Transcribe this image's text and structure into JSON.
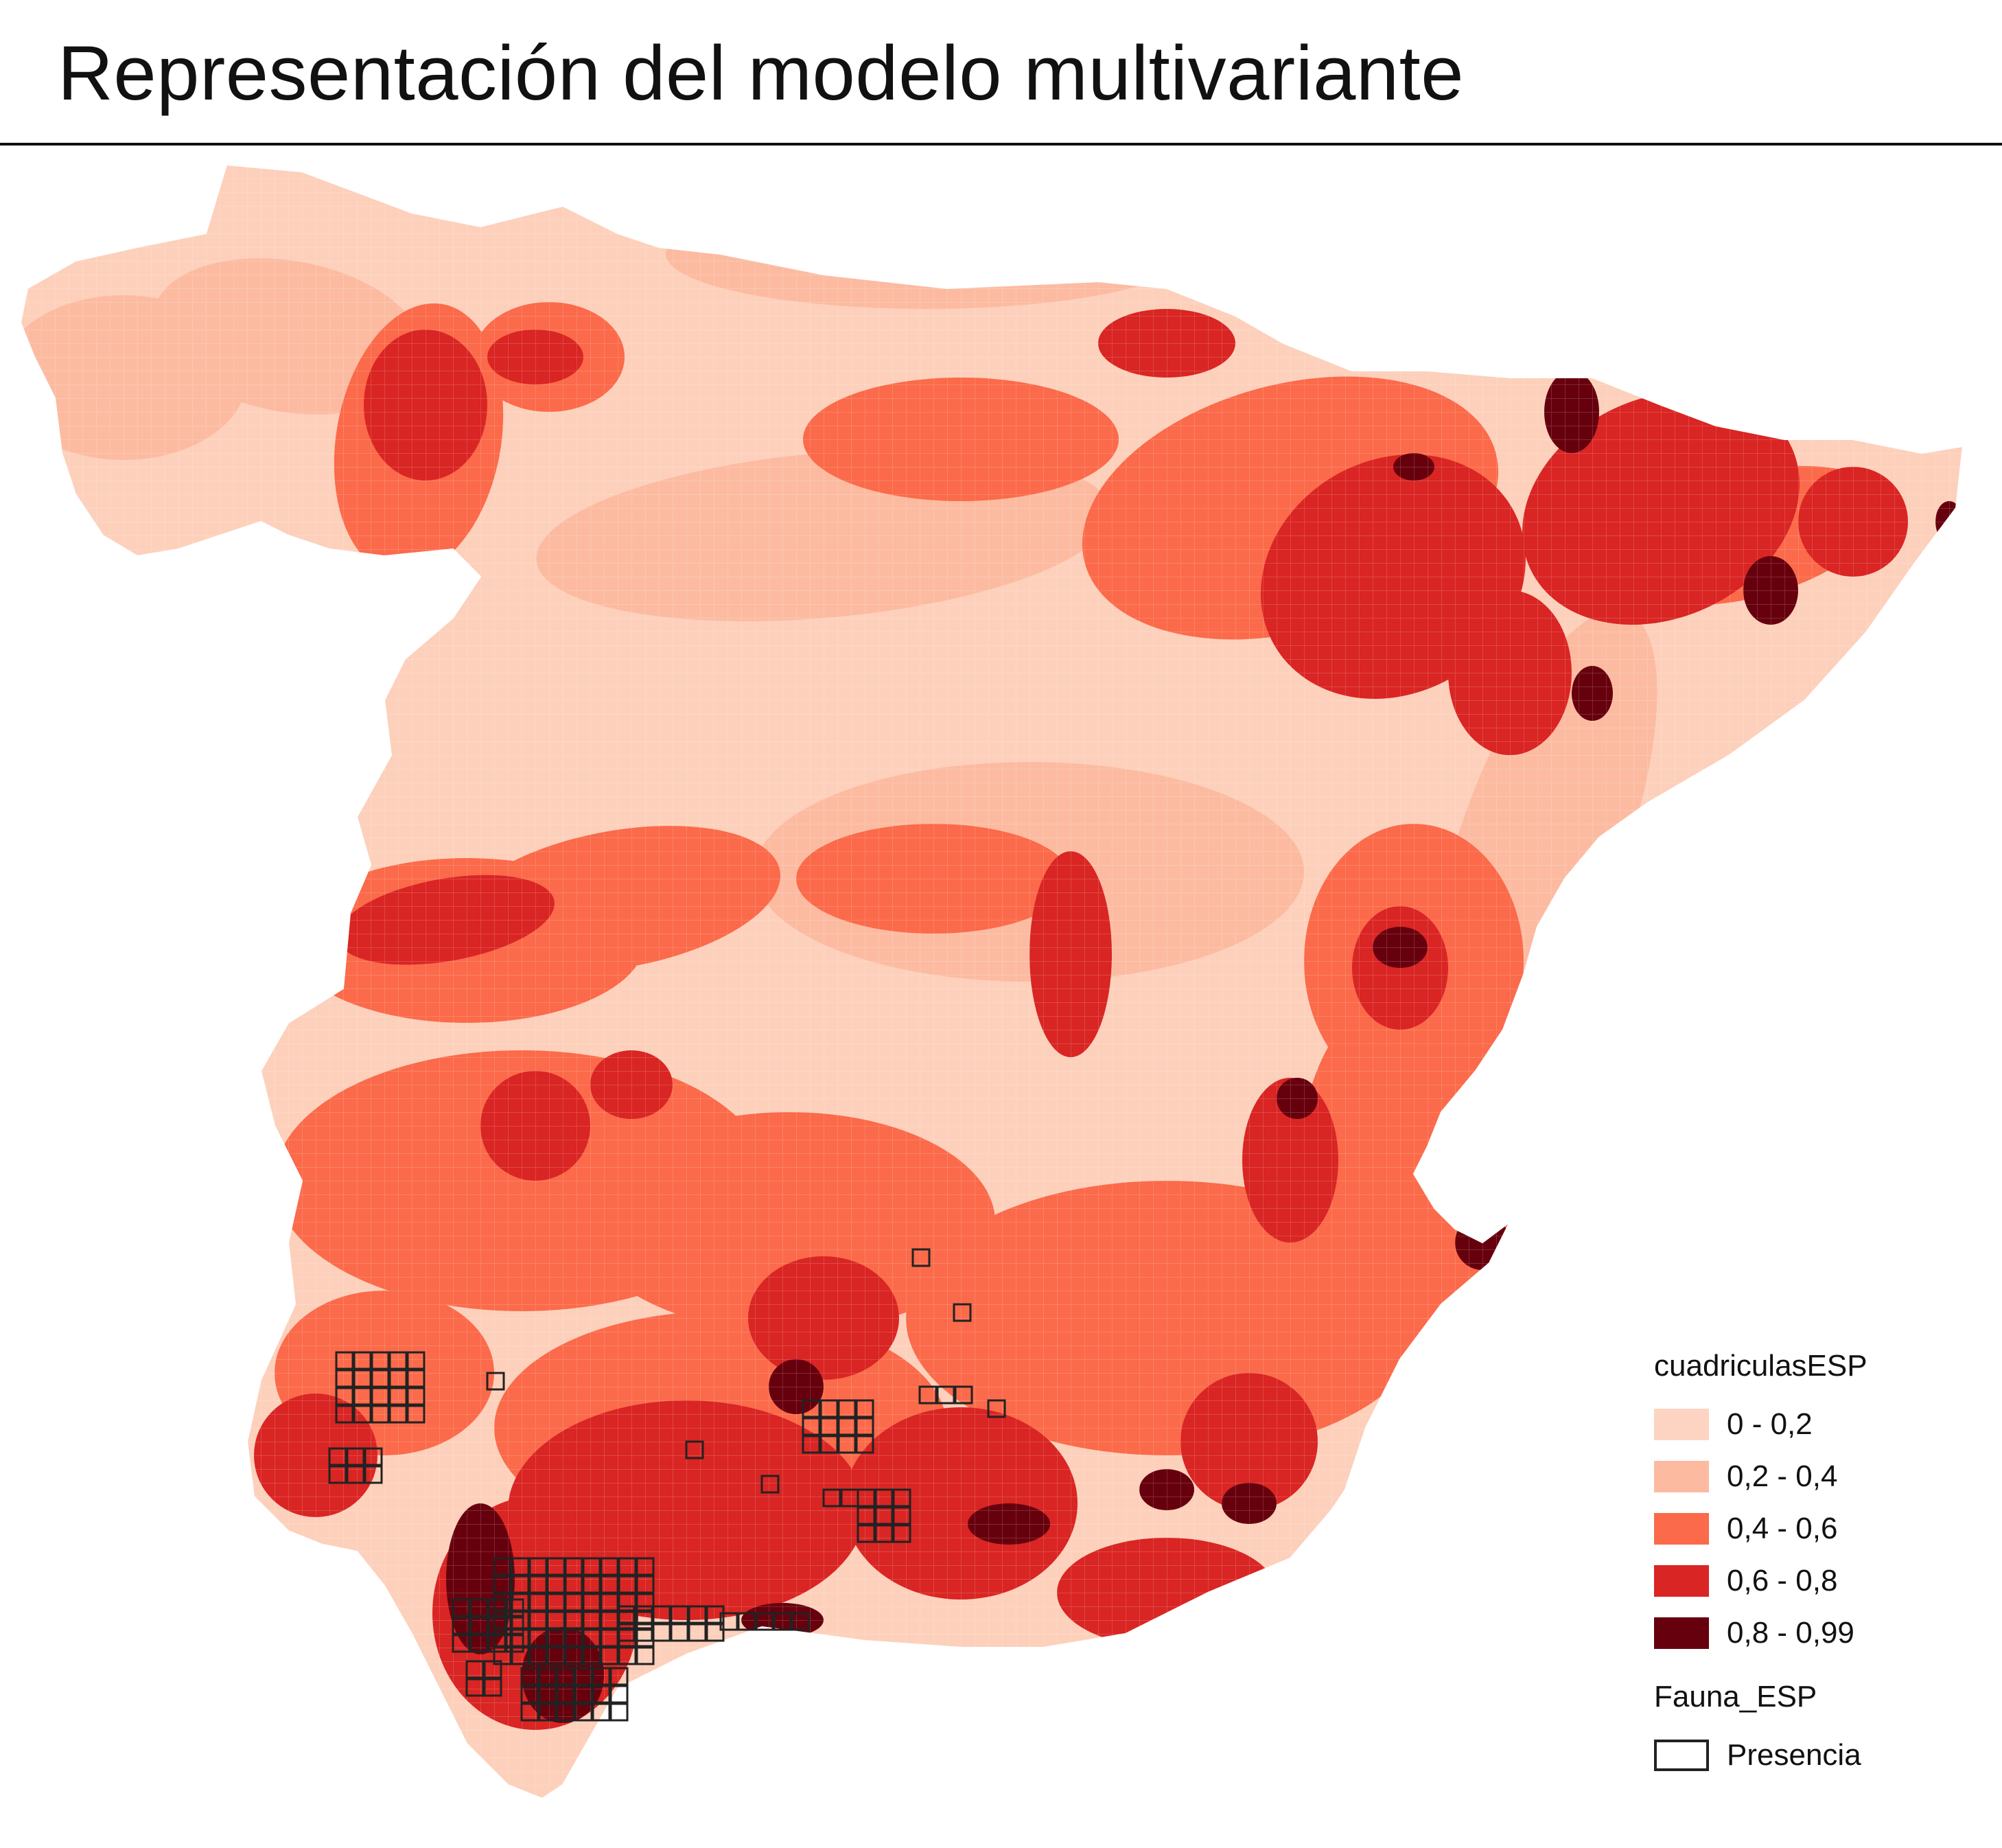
{
  "title": "Representación del modelo multivariante",
  "map": {
    "land_base_color": "#fdd0bb",
    "presence_outline_color": "#222222",
    "classes": [
      {
        "label": "0 - 0,2",
        "color": "#fdd4c2"
      },
      {
        "label": "0,2 - 0,4",
        "color": "#fcbba1"
      },
      {
        "label": "0,4 - 0,6",
        "color": "#fb6a4a"
      },
      {
        "label": "0,6 - 0,8",
        "color": "#d92523"
      },
      {
        "label": "0,8 - 0,99",
        "color": "#67000d"
      }
    ]
  },
  "legend": {
    "layer1_title": "cuadriculasESP",
    "layer2_title": "Fauna_ESP",
    "presence_label": "Presencia"
  }
}
